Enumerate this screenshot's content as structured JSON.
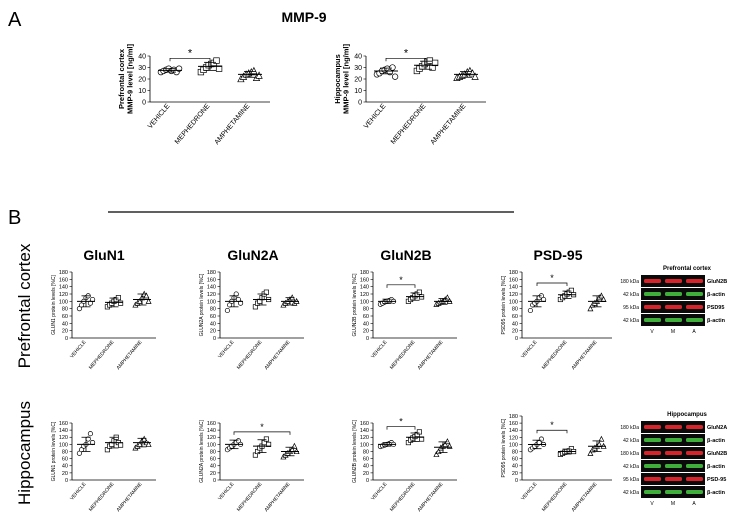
{
  "panel_a_label": "A",
  "panel_b_label": "B",
  "mmp_title": "MMP-9",
  "row_labels": [
    "Prefrontal cortex",
    "Hippocampus"
  ],
  "column_titles": [
    "GluN1",
    "GluN2A",
    "GluN2B",
    "PSD-95"
  ],
  "groups": [
    "VEHICLE",
    "MEPHEDRONE",
    "AMPHETAMINE"
  ],
  "significance_mark": "*",
  "colors": {
    "axis": "#000000",
    "marker": "#000000",
    "fill_open": "#ffffff"
  },
  "blots": [
    {
      "title": "Prefrontal cortex",
      "rows": [
        {
          "kda": "180 kDa",
          "protein": "GluN2B",
          "color": "#d8232a"
        },
        {
          "kda": "42 kDa",
          "protein": "β-actin",
          "color": "#3fae3a"
        },
        {
          "kda": "95 kDa",
          "protein": "PSD95",
          "color": "#d8232a"
        },
        {
          "kda": "42 kDa",
          "protein": "β-actin",
          "color": "#3fae3a"
        }
      ],
      "lanes": [
        "V",
        "M",
        "A"
      ]
    },
    {
      "title": "Hippocampus",
      "rows": [
        {
          "kda": "180 kDa",
          "protein": "GluN2A",
          "color": "#d8232a"
        },
        {
          "kda": "42 kDa",
          "protein": "β-actin",
          "color": "#3fae3a"
        },
        {
          "kda": "180 kDa",
          "protein": "GluN2B",
          "color": "#d8232a"
        },
        {
          "kda": "42 kDa",
          "protein": "β-actin",
          "color": "#3fae3a"
        },
        {
          "kda": "95 kDa",
          "protein": "PSD-95",
          "color": "#d8232a"
        },
        {
          "kda": "42 kDa",
          "protein": "β-actin",
          "color": "#3fae3a"
        }
      ],
      "lanes": [
        "V",
        "M",
        "A"
      ]
    }
  ],
  "chart_data": [
    {
      "id": "mmp_pfc",
      "type": "scatter",
      "title": "",
      "ylabel": "Prefrontal cortex\nMMP-9 level [ng/ml]",
      "ylim": [
        0,
        40
      ],
      "yticks": [
        0,
        10,
        20,
        30,
        40
      ],
      "categories": [
        "VEHICLE",
        "MEPHEDRONE",
        "AMPHETAMINE"
      ],
      "series": [
        {
          "marker": "circle",
          "mean": 27.5,
          "sd": 1.5,
          "values": [
            26,
            27,
            28,
            29,
            27,
            28,
            26,
            29
          ]
        },
        {
          "marker": "square",
          "mean": 31,
          "sd": 3.5,
          "values": [
            26,
            28,
            30,
            32,
            33,
            34,
            36,
            29
          ]
        },
        {
          "marker": "triangle",
          "mean": 24,
          "sd": 2.5,
          "values": [
            20,
            22,
            24,
            25,
            26,
            27,
            21,
            23
          ]
        }
      ],
      "significance": [
        {
          "from": 0,
          "to": 1,
          "y": 38
        }
      ]
    },
    {
      "id": "mmp_hip",
      "type": "scatter",
      "title": "",
      "ylabel": "Hippocampus\nMMP-9 level [ng/ml]",
      "ylim": [
        0,
        40
      ],
      "yticks": [
        0,
        10,
        20,
        30,
        40
      ],
      "categories": [
        "VEHICLE",
        "MEPHEDRONE",
        "AMPHETAMINE"
      ],
      "series": [
        {
          "marker": "circle",
          "mean": 27,
          "sd": 2.5,
          "values": [
            24,
            25,
            27,
            28,
            29,
            26,
            30,
            22
          ]
        },
        {
          "marker": "square",
          "mean": 32,
          "sd": 3.5,
          "values": [
            27,
            29,
            31,
            33,
            35,
            36,
            30,
            34
          ]
        },
        {
          "marker": "triangle",
          "mean": 24,
          "sd": 2.5,
          "values": [
            21,
            22,
            23,
            24,
            26,
            27,
            25,
            22
          ]
        }
      ],
      "significance": [
        {
          "from": 0,
          "to": 1,
          "y": 38
        }
      ]
    },
    {
      "id": "pfc_glun1",
      "type": "scatter",
      "title": "GluN1",
      "ylabel": "GLUN1 protein levels [%C]",
      "ylim": [
        0,
        180
      ],
      "yticks": [
        0,
        20,
        40,
        60,
        80,
        100,
        120,
        140,
        160,
        180
      ],
      "categories": [
        "VEHICLE",
        "MEPHEDRONE",
        "AMPHETAMINE"
      ],
      "series": [
        {
          "marker": "circle",
          "mean": 100,
          "sd": 15,
          "values": [
            80,
            90,
            100,
            110,
            115,
            95,
            105
          ]
        },
        {
          "marker": "square",
          "mean": 97,
          "sd": 12,
          "values": [
            85,
            90,
            95,
            100,
            105,
            110,
            95
          ]
        },
        {
          "marker": "triangle",
          "mean": 105,
          "sd": 15,
          "values": [
            90,
            95,
            100,
            110,
            120,
            115,
            100
          ]
        }
      ],
      "significance": []
    },
    {
      "id": "pfc_glun2a",
      "type": "scatter",
      "title": "GluN2A",
      "ylabel": "GLUN2A protein levels [%C]",
      "ylim": [
        0,
        180
      ],
      "yticks": [
        0,
        20,
        40,
        60,
        80,
        100,
        120,
        140,
        160,
        180
      ],
      "categories": [
        "VEHICLE",
        "MEPHEDRONE",
        "AMPHETAMINE"
      ],
      "series": [
        {
          "marker": "circle",
          "mean": 100,
          "sd": 15,
          "values": [
            75,
            90,
            100,
            110,
            120,
            105,
            95
          ]
        },
        {
          "marker": "square",
          "mean": 105,
          "sd": 15,
          "values": [
            85,
            95,
            100,
            110,
            120,
            125,
            105
          ]
        },
        {
          "marker": "triangle",
          "mean": 100,
          "sd": 10,
          "values": [
            90,
            95,
            100,
            105,
            110,
            95,
            100
          ]
        }
      ],
      "significance": []
    },
    {
      "id": "pfc_glun2b",
      "type": "scatter",
      "title": "GluN2B",
      "ylabel": "GLUN2B protein levels [%C]",
      "ylim": [
        0,
        180
      ],
      "yticks": [
        0,
        20,
        40,
        60,
        80,
        100,
        120,
        140,
        160,
        180
      ],
      "categories": [
        "VEHICLE",
        "MEPHEDRONE",
        "AMPHETAMINE"
      ],
      "series": [
        {
          "marker": "circle",
          "mean": 100,
          "sd": 6,
          "values": [
            92,
            95,
            98,
            100,
            102,
            105,
            100
          ]
        },
        {
          "marker": "square",
          "mean": 113,
          "sd": 10,
          "values": [
            100,
            105,
            110,
            115,
            120,
            125,
            112
          ]
        },
        {
          "marker": "triangle",
          "mean": 100,
          "sd": 8,
          "values": [
            92,
            95,
            98,
            100,
            105,
            110,
            100
          ]
        }
      ],
      "significance": [
        {
          "from": 0,
          "to": 1,
          "y": 145
        }
      ]
    },
    {
      "id": "pfc_psd95",
      "type": "scatter",
      "title": "PSD-95",
      "ylabel": "PSD95 protein levels [%C]",
      "ylim": [
        0,
        180
      ],
      "yticks": [
        0,
        20,
        40,
        60,
        80,
        100,
        120,
        140,
        160,
        180
      ],
      "categories": [
        "VEHICLE",
        "MEPHEDRONE",
        "AMPHETAMINE"
      ],
      "series": [
        {
          "marker": "circle",
          "mean": 100,
          "sd": 15,
          "values": [
            75,
            90,
            95,
            100,
            110,
            115,
            105
          ]
        },
        {
          "marker": "square",
          "mean": 118,
          "sd": 10,
          "values": [
            105,
            110,
            115,
            120,
            125,
            130,
            118
          ]
        },
        {
          "marker": "triangle",
          "mean": 100,
          "sd": 15,
          "values": [
            80,
            90,
            95,
            100,
            110,
            115,
            105
          ]
        }
      ],
      "significance": [
        {
          "from": 0,
          "to": 1,
          "y": 150
        }
      ]
    },
    {
      "id": "hip_glun1",
      "type": "scatter",
      "title": "",
      "ylabel": "GLUN1 protein levels [%C]",
      "ylim": [
        0,
        160
      ],
      "yticks": [
        0,
        20,
        40,
        60,
        80,
        100,
        120,
        140,
        160
      ],
      "categories": [
        "VEHICLE",
        "MEPHEDRONE",
        "AMPHETAMINE"
      ],
      "series": [
        {
          "marker": "circle",
          "mean": 100,
          "sd": 20,
          "values": [
            75,
            85,
            95,
            100,
            115,
            130,
            105
          ]
        },
        {
          "marker": "square",
          "mean": 105,
          "sd": 15,
          "values": [
            85,
            95,
            100,
            110,
            120,
            105,
            98
          ]
        },
        {
          "marker": "triangle",
          "mean": 105,
          "sd": 12,
          "values": [
            90,
            95,
            100,
            110,
            115,
            105,
            100
          ]
        }
      ],
      "significance": []
    },
    {
      "id": "hip_glun2a",
      "type": "scatter",
      "title": "",
      "ylabel": "GLUN2A protein levels [%C]",
      "ylim": [
        0,
        160
      ],
      "yticks": [
        0,
        20,
        40,
        60,
        80,
        100,
        120,
        140,
        160
      ],
      "categories": [
        "VEHICLE",
        "MEPHEDRONE",
        "AMPHETAMINE"
      ],
      "series": [
        {
          "marker": "circle",
          "mean": 100,
          "sd": 12,
          "values": [
            85,
            90,
            95,
            100,
            105,
            110,
            100
          ]
        },
        {
          "marker": "square",
          "mean": 95,
          "sd": 18,
          "values": [
            70,
            80,
            90,
            95,
            105,
            115,
            100
          ]
        },
        {
          "marker": "triangle",
          "mean": 80,
          "sd": 12,
          "values": [
            65,
            70,
            75,
            80,
            85,
            95,
            80
          ]
        }
      ],
      "significance": [
        {
          "from": 0,
          "to": 2,
          "y": 135
        }
      ]
    },
    {
      "id": "hip_glun2b",
      "type": "scatter",
      "title": "",
      "ylabel": "GLUN2B protein levels [%C]",
      "ylim": [
        0,
        160
      ],
      "yticks": [
        0,
        20,
        40,
        60,
        80,
        100,
        120,
        140,
        160
      ],
      "categories": [
        "VEHICLE",
        "MEPHEDRONE",
        "AMPHETAMINE"
      ],
      "series": [
        {
          "marker": "circle",
          "mean": 100,
          "sd": 5,
          "values": [
            94,
            96,
            98,
            100,
            102,
            105,
            100
          ]
        },
        {
          "marker": "square",
          "mean": 120,
          "sd": 12,
          "values": [
            105,
            112,
            118,
            122,
            128,
            135,
            115
          ]
        },
        {
          "marker": "triangle",
          "mean": 92,
          "sd": 15,
          "values": [
            72,
            80,
            90,
            95,
            100,
            108,
            95
          ]
        }
      ],
      "significance": [
        {
          "from": 0,
          "to": 1,
          "y": 150
        }
      ]
    },
    {
      "id": "hip_psd95",
      "type": "scatter",
      "title": "",
      "ylabel": "PSD95 protein levels [%C]",
      "ylim": [
        0,
        180
      ],
      "yticks": [
        0,
        20,
        40,
        60,
        80,
        100,
        120,
        140,
        160,
        180
      ],
      "categories": [
        "VEHICLE",
        "MEPHEDRONE",
        "AMPHETAMINE"
      ],
      "series": [
        {
          "marker": "circle",
          "mean": 100,
          "sd": 12,
          "values": [
            85,
            90,
            95,
            100,
            105,
            115,
            100
          ]
        },
        {
          "marker": "square",
          "mean": 80,
          "sd": 7,
          "values": [
            72,
            75,
            78,
            80,
            82,
            88,
            80
          ]
        },
        {
          "marker": "triangle",
          "mean": 95,
          "sd": 15,
          "values": [
            75,
            85,
            90,
            95,
            100,
            115,
            95
          ]
        }
      ],
      "significance": [
        {
          "from": 0,
          "to": 1,
          "y": 140
        }
      ]
    }
  ]
}
